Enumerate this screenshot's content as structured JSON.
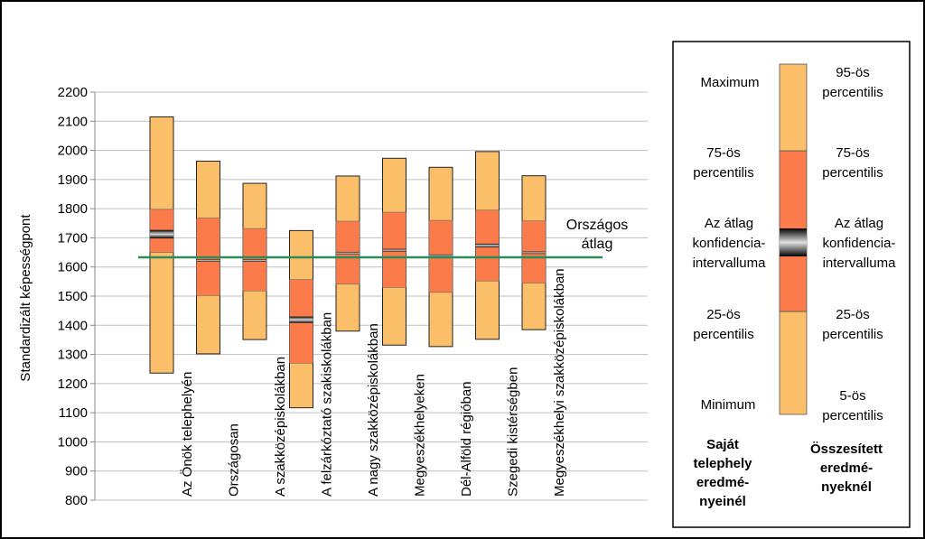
{
  "chart_data": {
    "type": "box",
    "ylabel": "Standardizált képességpont",
    "ylim": [
      800,
      2200
    ],
    "yticks": [
      800,
      900,
      1000,
      1100,
      1200,
      1300,
      1400,
      1500,
      1600,
      1700,
      1800,
      1900,
      2000,
      2100,
      2200
    ],
    "grid": true,
    "reference_line": {
      "value": 1633,
      "label_line1": "Országos",
      "label_line2": "átlag",
      "color": "#2e8b57"
    },
    "categories": [
      "Az Önök telephelyén",
      "Országosan",
      "A szakközépiskolákban",
      "A felzárkóztató szakiskolákban",
      "A nagy szakközépiskolákban",
      "Megyeszékhelyeken",
      "Dél-Alföld régióban",
      "Szegedi kistérségben",
      "Megyeszékhelyi szakközépiskolákban"
    ],
    "boxes": [
      {
        "low": 1236,
        "q1": 1650,
        "ci_low": 1698,
        "ci_high": 1727,
        "q3": 1798,
        "high": 2115
      },
      {
        "low": 1302,
        "q1": 1502,
        "ci_low": 1621,
        "ci_high": 1626,
        "q3": 1768,
        "high": 1963
      },
      {
        "low": 1351,
        "q1": 1518,
        "ci_low": 1618,
        "ci_high": 1626,
        "q3": 1732,
        "high": 1887
      },
      {
        "low": 1117,
        "q1": 1270,
        "ci_low": 1408,
        "ci_high": 1430,
        "q3": 1557,
        "high": 1725
      },
      {
        "low": 1380,
        "q1": 1541,
        "ci_low": 1644,
        "ci_high": 1652,
        "q3": 1757,
        "high": 1912
      },
      {
        "low": 1332,
        "q1": 1530,
        "ci_low": 1653,
        "ci_high": 1662,
        "q3": 1788,
        "high": 1973
      },
      {
        "low": 1327,
        "q1": 1513,
        "ci_low": 1636,
        "ci_high": 1643,
        "q3": 1760,
        "high": 1942
      },
      {
        "low": 1352,
        "q1": 1552,
        "ci_low": 1667,
        "ci_high": 1680,
        "q3": 1795,
        "high": 1996
      },
      {
        "low": 1385,
        "q1": 1545,
        "ci_low": 1645,
        "ci_high": 1653,
        "q3": 1758,
        "high": 1913
      }
    ],
    "colors": {
      "outer": "#fbbf6a",
      "inner": "#fb7c4a",
      "ci_edge": "#000000",
      "ci_mid": "#d9d9d9",
      "grid": "#c0c0c0"
    }
  },
  "legend": {
    "left_labels": [
      "Maximum",
      "75-ös percentilis",
      "Az átlag konfidencia-intervalluma",
      "25-ös percentilis",
      "Minimum"
    ],
    "right_labels": [
      "95-ös percentilis",
      "75-ös percentilis",
      "Az átlag konfidencia-intervalluma",
      "25-ös percentilis",
      "5-ös percentilis"
    ],
    "left_footer": "Saját telephely eredmé-nyeinél",
    "right_footer": "Összesített eredmé-nyeknél"
  }
}
